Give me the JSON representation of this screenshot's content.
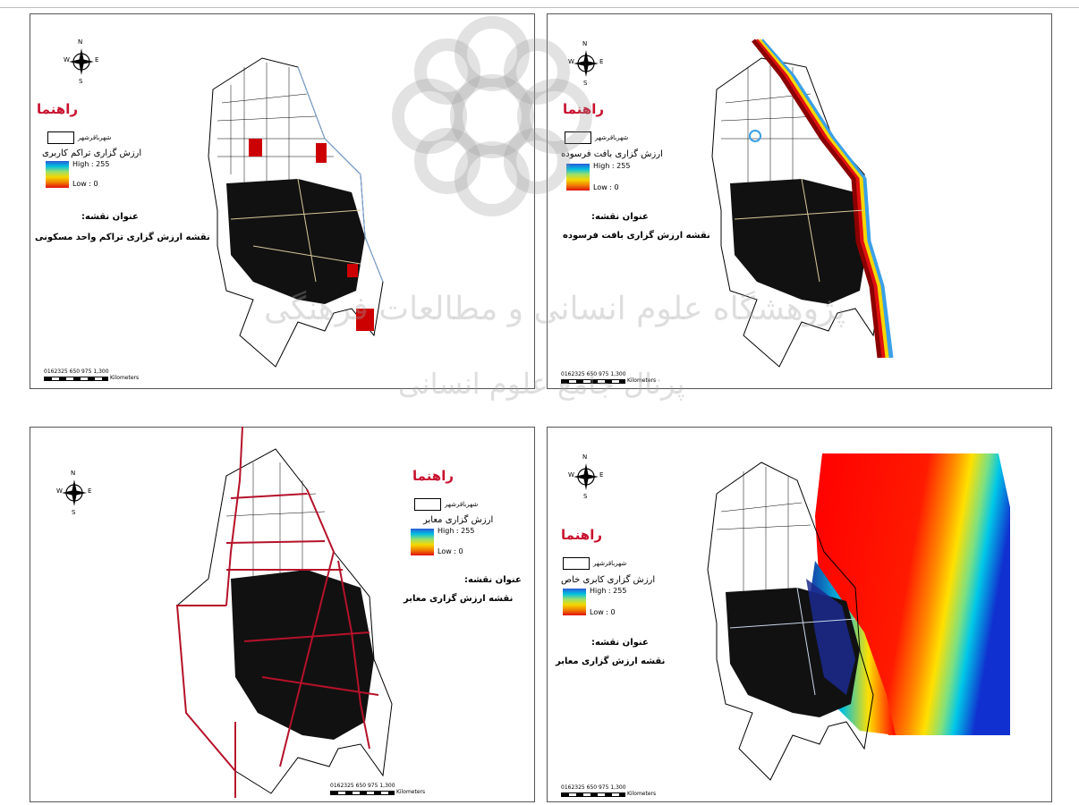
{
  "panels": [
    {
      "legend_title": "راهنما",
      "boundary_label": "شهرباقرشهر",
      "layer_name": "ارزش گزاری تراکم کاربری",
      "high_label": "High : 255",
      "low_label": "Low : 0",
      "map_title_label": "عنوان نقشه:",
      "map_title": "نقشه ارزش گزاری تراکم واحد مسکونی",
      "scale_numbers": "0162325  650  975  1,300",
      "scale_unit": "Kilometers"
    },
    {
      "legend_title": "راهنما",
      "boundary_label": "شهرباقرشهر",
      "layer_name": "ارزش گزاری بافت فرسوده",
      "high_label": "High : 255",
      "low_label": "Low : 0",
      "map_title_label": "عنوان نقشه:",
      "map_title": "نقشه ارزش گزاری بافت فرسوده",
      "scale_numbers": "0162325  650  975  1,300",
      "scale_unit": "Kilometers"
    },
    {
      "legend_title": "راهنما",
      "boundary_label": "شهرباقرشهر",
      "layer_name": "ارزش گزاری معابر",
      "high_label": "High : 255",
      "low_label": "Low : 0",
      "map_title_label": "عنوان نقشه:",
      "map_title": "نقشه ارزش گزاری معابر",
      "scale_numbers": "0162325  650  975  1,300",
      "scale_unit": "Kilometers"
    },
    {
      "legend_title": "راهنما",
      "boundary_label": "شهرباقرشهر",
      "layer_name": "ارزش گزاری کابری خاص",
      "high_label": "High : 255",
      "low_label": "Low : 0",
      "map_title_label": "عنوان نقشه:",
      "map_title": "نقشه ارزش گزاری معابر",
      "scale_numbers": "0162325  650  975  1,300",
      "scale_unit": "Kilometers"
    }
  ],
  "compass": {
    "n": "N",
    "s": "S",
    "e": "E",
    "w": "W"
  },
  "watermark": {
    "line1": "پژوهشگاه علوم انسانی و مطالعات فرهنگی",
    "line2": "پرتال جامع علوم انسانی"
  },
  "colors": {
    "legend_title": "#c8102e",
    "ramp_high": "#2b5bd7",
    "ramp_low": "#e01010",
    "city_fill": "#111111"
  }
}
